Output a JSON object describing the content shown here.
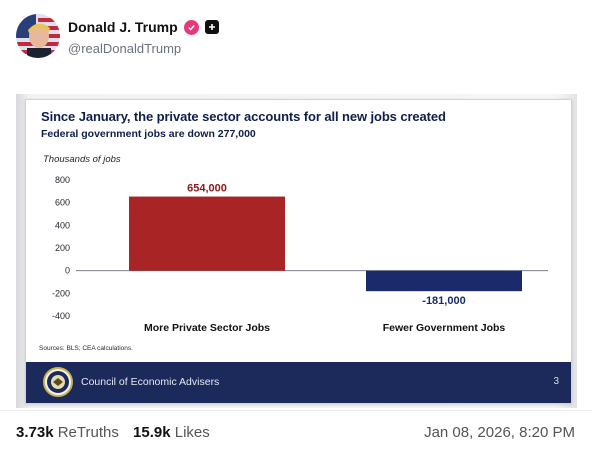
{
  "post": {
    "author": {
      "name": "Donald J. Trump",
      "handle": "@realDonaldTrump",
      "verified_color": "#e5397e"
    },
    "icons": [
      "avatar",
      "verified-badge-icon",
      "plus-icon"
    ],
    "stats": {
      "retruths_count": "3.73k",
      "retruths_label": "ReTruths",
      "likes_count": "15.9k",
      "likes_label": "Likes"
    },
    "timestamp": "Jan 08, 2026, 8:20 PM"
  },
  "slide": {
    "title": "Since January, the private sector accounts for all new jobs created",
    "subtitle": "Federal government jobs are down 277,000",
    "sources": "Sources: BLS; CEA calculations.",
    "footer_org": "Council of Economic Advisers",
    "page_number": "3",
    "footer_color": "#1b2a5a"
  },
  "chart_data": {
    "type": "bar",
    "categories": [
      "More Private Sector Jobs",
      "Fewer Government Jobs"
    ],
    "values": [
      654,
      -181
    ],
    "data_labels": [
      "654,000",
      "-181,000"
    ],
    "colors": [
      "#a92424",
      "#1b2a6b"
    ],
    "label_colors": [
      "#8b1a1a",
      "#1b2a6b"
    ],
    "ylabel": "Thousands of jobs",
    "ylim": [
      -400,
      800
    ],
    "yticks": [
      800,
      600,
      400,
      200,
      0,
      -200,
      -400
    ],
    "grid": false
  }
}
